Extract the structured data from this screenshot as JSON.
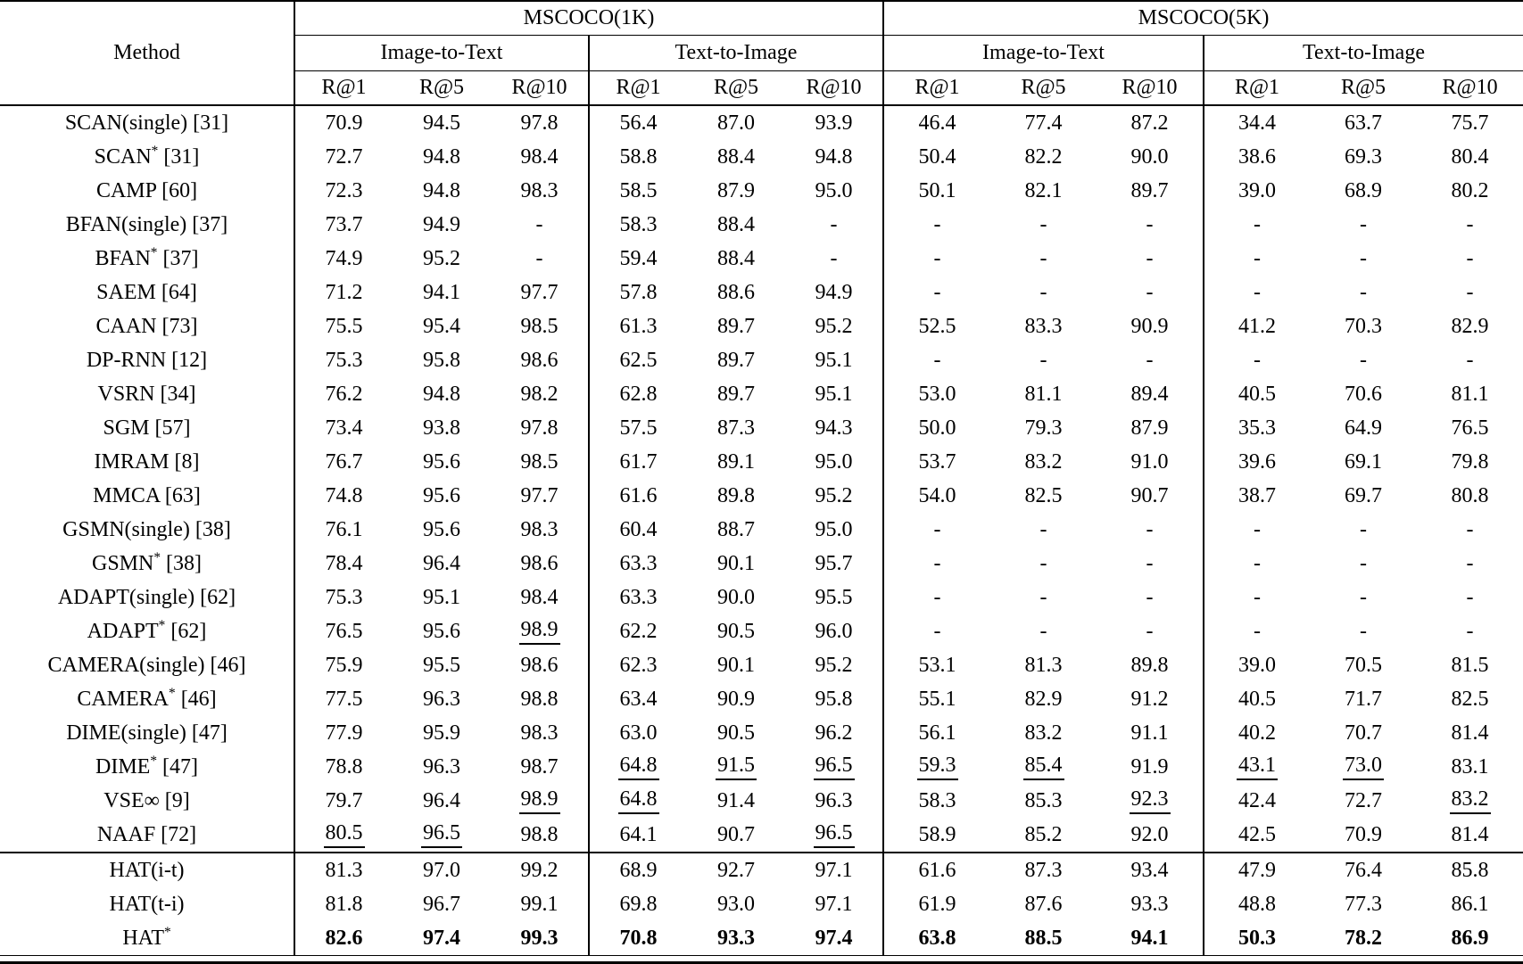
{
  "table": {
    "header": {
      "method_label": "Method",
      "groups": [
        {
          "label": "MSCOCO(1K)",
          "subgroups": [
            "Image-to-Text",
            "Text-to-Image"
          ]
        },
        {
          "label": "MSCOCO(5K)",
          "subgroups": [
            "Image-to-Text",
            "Text-to-Image"
          ]
        }
      ],
      "metrics": [
        "R@1",
        "R@5",
        "R@10"
      ]
    },
    "rows": [
      {
        "method": "SCAN(single) [31]",
        "section": "baseline",
        "bold": false,
        "underline": [],
        "values": [
          "70.9",
          "94.5",
          "97.8",
          "56.4",
          "87.0",
          "93.9",
          "46.4",
          "77.4",
          "87.2",
          "34.4",
          "63.7",
          "75.7"
        ]
      },
      {
        "method": "SCAN* [31]",
        "section": "baseline",
        "bold": false,
        "underline": [],
        "values": [
          "72.7",
          "94.8",
          "98.4",
          "58.8",
          "88.4",
          "94.8",
          "50.4",
          "82.2",
          "90.0",
          "38.6",
          "69.3",
          "80.4"
        ]
      },
      {
        "method": "CAMP [60]",
        "section": "baseline",
        "bold": false,
        "underline": [],
        "values": [
          "72.3",
          "94.8",
          "98.3",
          "58.5",
          "87.9",
          "95.0",
          "50.1",
          "82.1",
          "89.7",
          "39.0",
          "68.9",
          "80.2"
        ]
      },
      {
        "method": "BFAN(single) [37]",
        "section": "baseline",
        "bold": false,
        "underline": [],
        "values": [
          "73.7",
          "94.9",
          "-",
          "58.3",
          "88.4",
          "-",
          "-",
          "-",
          "-",
          "-",
          "-",
          "-"
        ]
      },
      {
        "method": "BFAN* [37]",
        "section": "baseline",
        "bold": false,
        "underline": [],
        "values": [
          "74.9",
          "95.2",
          "-",
          "59.4",
          "88.4",
          "-",
          "-",
          "-",
          "-",
          "-",
          "-",
          "-"
        ]
      },
      {
        "method": "SAEM [64]",
        "section": "baseline",
        "bold": false,
        "underline": [],
        "values": [
          "71.2",
          "94.1",
          "97.7",
          "57.8",
          "88.6",
          "94.9",
          "-",
          "-",
          "-",
          "-",
          "-",
          "-"
        ]
      },
      {
        "method": "CAAN [73]",
        "section": "baseline",
        "bold": false,
        "underline": [],
        "values": [
          "75.5",
          "95.4",
          "98.5",
          "61.3",
          "89.7",
          "95.2",
          "52.5",
          "83.3",
          "90.9",
          "41.2",
          "70.3",
          "82.9"
        ]
      },
      {
        "method": "DP-RNN [12]",
        "section": "baseline",
        "bold": false,
        "underline": [],
        "values": [
          "75.3",
          "95.8",
          "98.6",
          "62.5",
          "89.7",
          "95.1",
          "-",
          "-",
          "-",
          "-",
          "-",
          "-"
        ]
      },
      {
        "method": "VSRN [34]",
        "section": "baseline",
        "bold": false,
        "underline": [],
        "values": [
          "76.2",
          "94.8",
          "98.2",
          "62.8",
          "89.7",
          "95.1",
          "53.0",
          "81.1",
          "89.4",
          "40.5",
          "70.6",
          "81.1"
        ]
      },
      {
        "method": "SGM [57]",
        "section": "baseline",
        "bold": false,
        "underline": [],
        "values": [
          "73.4",
          "93.8",
          "97.8",
          "57.5",
          "87.3",
          "94.3",
          "50.0",
          "79.3",
          "87.9",
          "35.3",
          "64.9",
          "76.5"
        ]
      },
      {
        "method": "IMRAM [8]",
        "section": "baseline",
        "bold": false,
        "underline": [],
        "values": [
          "76.7",
          "95.6",
          "98.5",
          "61.7",
          "89.1",
          "95.0",
          "53.7",
          "83.2",
          "91.0",
          "39.6",
          "69.1",
          "79.8"
        ]
      },
      {
        "method": "MMCA [63]",
        "section": "baseline",
        "bold": false,
        "underline": [],
        "values": [
          "74.8",
          "95.6",
          "97.7",
          "61.6",
          "89.8",
          "95.2",
          "54.0",
          "82.5",
          "90.7",
          "38.7",
          "69.7",
          "80.8"
        ]
      },
      {
        "method": "GSMN(single) [38]",
        "section": "baseline",
        "bold": false,
        "underline": [],
        "values": [
          "76.1",
          "95.6",
          "98.3",
          "60.4",
          "88.7",
          "95.0",
          "-",
          "-",
          "-",
          "-",
          "-",
          "-"
        ]
      },
      {
        "method": "GSMN* [38]",
        "section": "baseline",
        "bold": false,
        "underline": [],
        "values": [
          "78.4",
          "96.4",
          "98.6",
          "63.3",
          "90.1",
          "95.7",
          "-",
          "-",
          "-",
          "-",
          "-",
          "-"
        ]
      },
      {
        "method": "ADAPT(single) [62]",
        "section": "baseline",
        "bold": false,
        "underline": [],
        "values": [
          "75.3",
          "95.1",
          "98.4",
          "63.3",
          "90.0",
          "95.5",
          "-",
          "-",
          "-",
          "-",
          "-",
          "-"
        ]
      },
      {
        "method": "ADAPT* [62]",
        "section": "baseline",
        "bold": false,
        "underline": [
          2
        ],
        "values": [
          "76.5",
          "95.6",
          "98.9",
          "62.2",
          "90.5",
          "96.0",
          "-",
          "-",
          "-",
          "-",
          "-",
          "-"
        ]
      },
      {
        "method": "CAMERA(single) [46]",
        "section": "baseline",
        "bold": false,
        "underline": [],
        "values": [
          "75.9",
          "95.5",
          "98.6",
          "62.3",
          "90.1",
          "95.2",
          "53.1",
          "81.3",
          "89.8",
          "39.0",
          "70.5",
          "81.5"
        ]
      },
      {
        "method": "CAMERA* [46]",
        "section": "baseline",
        "bold": false,
        "underline": [],
        "values": [
          "77.5",
          "96.3",
          "98.8",
          "63.4",
          "90.9",
          "95.8",
          "55.1",
          "82.9",
          "91.2",
          "40.5",
          "71.7",
          "82.5"
        ]
      },
      {
        "method": "DIME(single) [47]",
        "section": "baseline",
        "bold": false,
        "underline": [],
        "values": [
          "77.9",
          "95.9",
          "98.3",
          "63.0",
          "90.5",
          "96.2",
          "56.1",
          "83.2",
          "91.1",
          "40.2",
          "70.7",
          "81.4"
        ]
      },
      {
        "method": "DIME* [47]",
        "section": "baseline",
        "bold": false,
        "underline": [
          3,
          4,
          5,
          6,
          7,
          9,
          10
        ],
        "values": [
          "78.8",
          "96.3",
          "98.7",
          "64.8",
          "91.5",
          "96.5",
          "59.3",
          "85.4",
          "91.9",
          "43.1",
          "73.0",
          "83.1"
        ]
      },
      {
        "method": "VSE∞ [9]",
        "section": "baseline",
        "bold": false,
        "underline": [
          2,
          3,
          8,
          11
        ],
        "values": [
          "79.7",
          "96.4",
          "98.9",
          "64.8",
          "91.4",
          "96.3",
          "58.3",
          "85.3",
          "92.3",
          "42.4",
          "72.7",
          "83.2"
        ]
      },
      {
        "method": "NAAF [72]",
        "section": "baseline",
        "bold": false,
        "underline": [
          0,
          1,
          5
        ],
        "values": [
          "80.5",
          "96.5",
          "98.8",
          "64.1",
          "90.7",
          "96.5",
          "58.9",
          "85.2",
          "92.0",
          "42.5",
          "70.9",
          "81.4"
        ]
      },
      {
        "method": "HAT(i-t)",
        "section": "ours",
        "bold": false,
        "underline": [],
        "values": [
          "81.3",
          "97.0",
          "99.2",
          "68.9",
          "92.7",
          "97.1",
          "61.6",
          "87.3",
          "93.4",
          "47.9",
          "76.4",
          "85.8"
        ]
      },
      {
        "method": "HAT(t-i)",
        "section": "ours",
        "bold": false,
        "underline": [],
        "values": [
          "81.8",
          "96.7",
          "99.1",
          "69.8",
          "93.0",
          "97.1",
          "61.9",
          "87.6",
          "93.3",
          "48.8",
          "77.3",
          "86.1"
        ]
      },
      {
        "method": "HAT*",
        "section": "ours",
        "bold": true,
        "underline": [],
        "values": [
          "82.6",
          "97.4",
          "99.3",
          "70.8",
          "93.3",
          "97.4",
          "63.8",
          "88.5",
          "94.1",
          "50.3",
          "78.2",
          "86.9"
        ]
      }
    ]
  }
}
